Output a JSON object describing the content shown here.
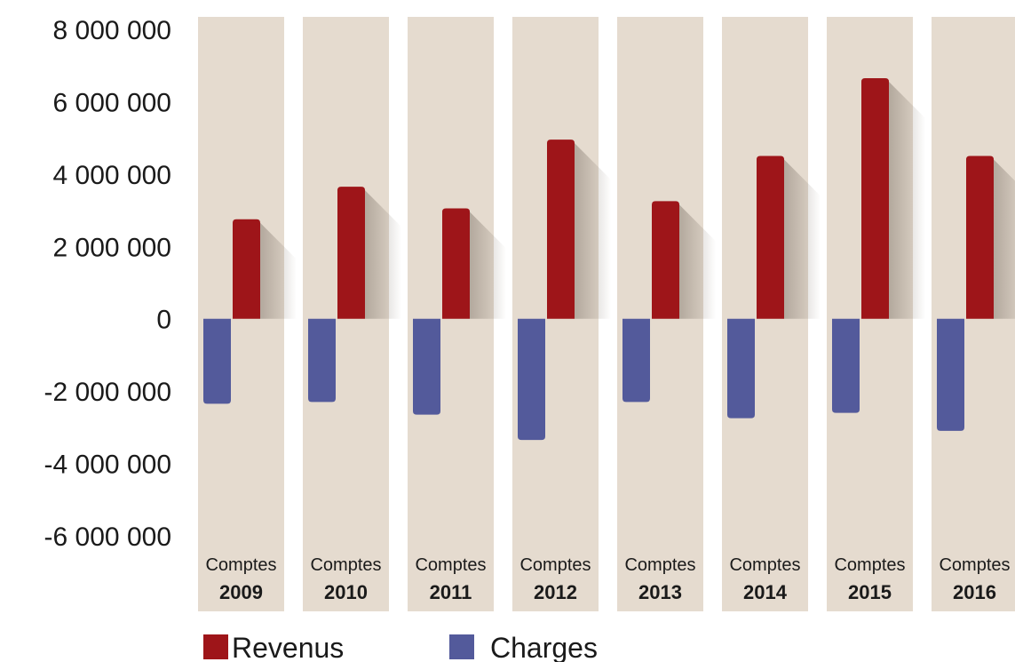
{
  "chart_data": {
    "type": "bar",
    "categories": [
      "2009",
      "2010",
      "2011",
      "2012",
      "2013",
      "2014",
      "2015",
      "2016"
    ],
    "category_prefix": "Comptes",
    "series": [
      {
        "name": "Revenus",
        "color": "#9e1519",
        "values": [
          2750000,
          3650000,
          3050000,
          4950000,
          3250000,
          4500000,
          6650000,
          4500000
        ]
      },
      {
        "name": "Charges",
        "color": "#535a9b",
        "values": [
          -2350000,
          -2300000,
          -2650000,
          -3350000,
          -2300000,
          -2750000,
          -2600000,
          -3100000
        ]
      }
    ],
    "yticks": [
      "8 000 000",
      "6 000 000",
      "4 000 000",
      "2 000 000",
      "0",
      "-2 000 000",
      "-4 000 000",
      "-6 000 000"
    ],
    "ylim": [
      -6000000,
      8000000
    ],
    "column_background": "#e5dbcf",
    "legend_position": "bottom-left"
  }
}
